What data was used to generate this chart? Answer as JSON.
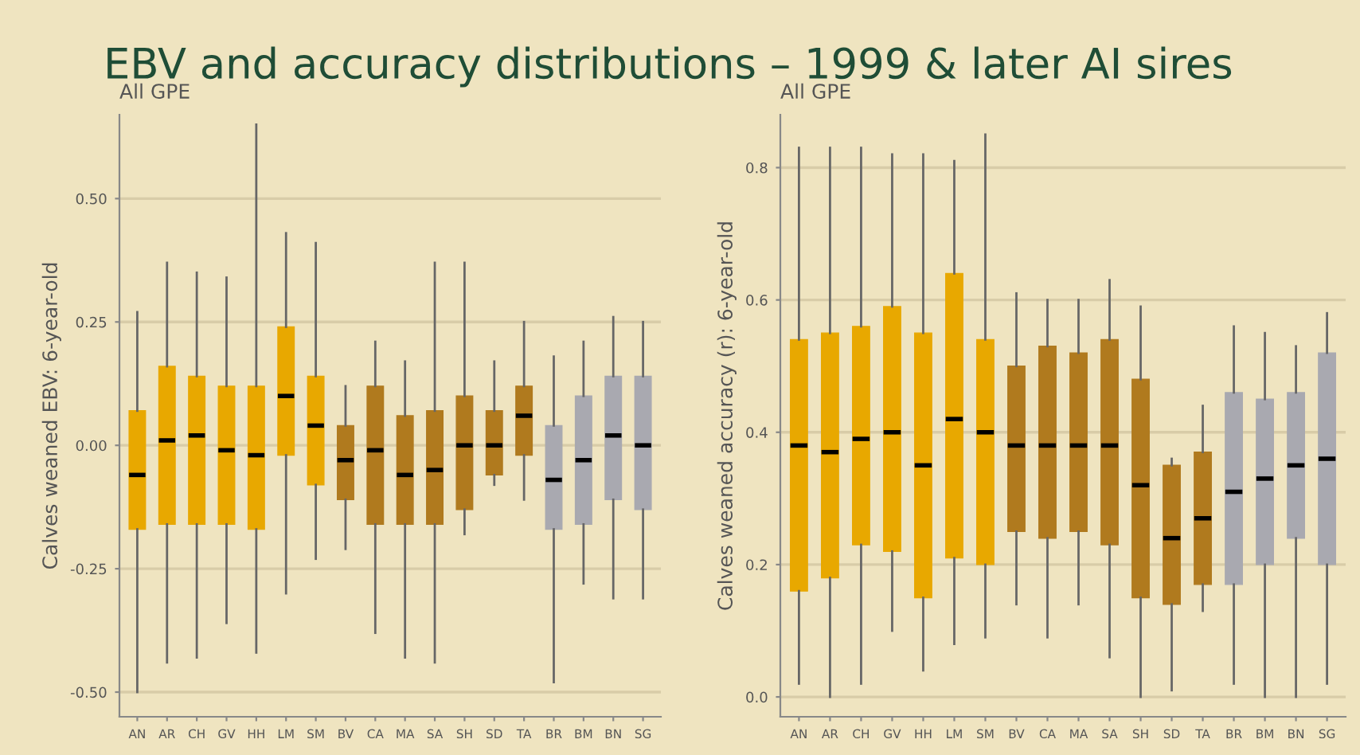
{
  "chart_data": [
    {
      "type": "box",
      "title": "EBV and accuracy distributions – 1999 & later AI sires",
      "subtitle": "All GPE",
      "ylabel": "Calves weaned EBV: 6-year-old",
      "categories": [
        "AN",
        "AR",
        "CH",
        "GV",
        "HH",
        "LM",
        "SM",
        "BV",
        "CA",
        "MA",
        "SA",
        "SH",
        "SD",
        "TA",
        "BR",
        "BM",
        "BN",
        "SG"
      ],
      "colors": [
        "#e8a800",
        "#e8a800",
        "#e8a800",
        "#e8a800",
        "#e8a800",
        "#e8a800",
        "#e8a800",
        "#b07a1e",
        "#b07a1e",
        "#b07a1e",
        "#b07a1e",
        "#b07a1e",
        "#b07a1e",
        "#b07a1e",
        "#a9a9b0",
        "#a9a9b0",
        "#a9a9b0",
        "#a9a9b0"
      ],
      "boxes": [
        {
          "low": -0.5,
          "q1": -0.17,
          "median": -0.06,
          "q3": 0.07,
          "high": 0.27
        },
        {
          "low": -0.44,
          "q1": -0.16,
          "median": 0.01,
          "q3": 0.16,
          "high": 0.37
        },
        {
          "low": -0.43,
          "q1": -0.16,
          "median": 0.02,
          "q3": 0.14,
          "high": 0.35
        },
        {
          "low": -0.36,
          "q1": -0.16,
          "median": -0.01,
          "q3": 0.12,
          "high": 0.34
        },
        {
          "low": -0.42,
          "q1": -0.17,
          "median": -0.02,
          "q3": 0.12,
          "high": 0.65
        },
        {
          "low": -0.3,
          "q1": -0.02,
          "median": 0.1,
          "q3": 0.24,
          "high": 0.43
        },
        {
          "low": -0.23,
          "q1": -0.08,
          "median": 0.04,
          "q3": 0.14,
          "high": 0.41
        },
        {
          "low": -0.21,
          "q1": -0.11,
          "median": -0.03,
          "q3": 0.04,
          "high": 0.12
        },
        {
          "low": -0.38,
          "q1": -0.16,
          "median": -0.01,
          "q3": 0.12,
          "high": 0.21
        },
        {
          "low": -0.43,
          "q1": -0.16,
          "median": -0.06,
          "q3": 0.06,
          "high": 0.17
        },
        {
          "low": -0.44,
          "q1": -0.16,
          "median": -0.05,
          "q3": 0.07,
          "high": 0.37
        },
        {
          "low": -0.18,
          "q1": -0.13,
          "median": 0.0,
          "q3": 0.1,
          "high": 0.37
        },
        {
          "low": -0.08,
          "q1": -0.06,
          "median": 0.0,
          "q3": 0.07,
          "high": 0.17
        },
        {
          "low": -0.11,
          "q1": -0.02,
          "median": 0.06,
          "q3": 0.12,
          "high": 0.25
        },
        {
          "low": -0.48,
          "q1": -0.17,
          "median": -0.07,
          "q3": 0.04,
          "high": 0.18
        },
        {
          "low": -0.28,
          "q1": -0.16,
          "median": -0.03,
          "q3": 0.1,
          "high": 0.21
        },
        {
          "low": -0.31,
          "q1": -0.11,
          "median": 0.02,
          "q3": 0.14,
          "high": 0.26
        },
        {
          "low": -0.31,
          "q1": -0.13,
          "median": 0.0,
          "q3": 0.14,
          "high": 0.25
        }
      ],
      "ylim": [
        -0.55,
        0.67
      ],
      "yticks": [
        {
          "value": -0.5,
          "label": "-0.50"
        },
        {
          "value": -0.25,
          "label": "-0.25"
        },
        {
          "value": 0,
          "label": "0.00"
        },
        {
          "value": 0.25,
          "label": "0.25"
        },
        {
          "value": 0.5,
          "label": "0.50"
        }
      ],
      "grid": "y"
    },
    {
      "type": "box",
      "subtitle": "All GPE",
      "ylabel": "Calves weaned accuracy (r): 6-year-old",
      "categories": [
        "AN",
        "AR",
        "CH",
        "GV",
        "HH",
        "LM",
        "SM",
        "BV",
        "CA",
        "MA",
        "SA",
        "SH",
        "SD",
        "TA",
        "BR",
        "BM",
        "BN",
        "SG"
      ],
      "colors": [
        "#e8a800",
        "#e8a800",
        "#e8a800",
        "#e8a800",
        "#e8a800",
        "#e8a800",
        "#e8a800",
        "#b07a1e",
        "#b07a1e",
        "#b07a1e",
        "#b07a1e",
        "#b07a1e",
        "#b07a1e",
        "#b07a1e",
        "#a9a9b0",
        "#a9a9b0",
        "#a9a9b0",
        "#a9a9b0"
      ],
      "boxes": [
        {
          "low": 0.02,
          "q1": 0.16,
          "median": 0.38,
          "q3": 0.54,
          "high": 0.83
        },
        {
          "low": 0.0,
          "q1": 0.18,
          "median": 0.37,
          "q3": 0.55,
          "high": 0.83
        },
        {
          "low": 0.02,
          "q1": 0.23,
          "median": 0.39,
          "q3": 0.56,
          "high": 0.83
        },
        {
          "low": 0.1,
          "q1": 0.22,
          "median": 0.4,
          "q3": 0.59,
          "high": 0.82
        },
        {
          "low": 0.04,
          "q1": 0.15,
          "median": 0.35,
          "q3": 0.55,
          "high": 0.82
        },
        {
          "low": 0.08,
          "q1": 0.21,
          "median": 0.42,
          "q3": 0.64,
          "high": 0.81
        },
        {
          "low": 0.09,
          "q1": 0.2,
          "median": 0.4,
          "q3": 0.54,
          "high": 0.85
        },
        {
          "low": 0.14,
          "q1": 0.25,
          "median": 0.38,
          "q3": 0.5,
          "high": 0.61
        },
        {
          "low": 0.09,
          "q1": 0.24,
          "median": 0.38,
          "q3": 0.53,
          "high": 0.6
        },
        {
          "low": 0.14,
          "q1": 0.25,
          "median": 0.38,
          "q3": 0.52,
          "high": 0.6
        },
        {
          "low": 0.06,
          "q1": 0.23,
          "median": 0.38,
          "q3": 0.54,
          "high": 0.63
        },
        {
          "low": 0.0,
          "q1": 0.15,
          "median": 0.32,
          "q3": 0.48,
          "high": 0.59
        },
        {
          "low": 0.01,
          "q1": 0.14,
          "median": 0.24,
          "q3": 0.35,
          "high": 0.36
        },
        {
          "low": 0.13,
          "q1": 0.17,
          "median": 0.27,
          "q3": 0.37,
          "high": 0.44
        },
        {
          "low": 0.02,
          "q1": 0.17,
          "median": 0.31,
          "q3": 0.46,
          "high": 0.56
        },
        {
          "low": 0.0,
          "q1": 0.2,
          "median": 0.33,
          "q3": 0.45,
          "high": 0.55
        },
        {
          "low": 0.0,
          "q1": 0.24,
          "median": 0.35,
          "q3": 0.46,
          "high": 0.53
        },
        {
          "low": 0.02,
          "q1": 0.2,
          "median": 0.36,
          "q3": 0.52,
          "high": 0.58
        }
      ],
      "ylim": [
        -0.03,
        0.88
      ],
      "yticks": [
        {
          "value": 0,
          "label": "0.0"
        },
        {
          "value": 0.2,
          "label": "0.2"
        },
        {
          "value": 0.4,
          "label": "0.4"
        },
        {
          "value": 0.6,
          "label": "0.6"
        },
        {
          "value": 0.8,
          "label": "0.8"
        }
      ],
      "grid": "y"
    }
  ]
}
